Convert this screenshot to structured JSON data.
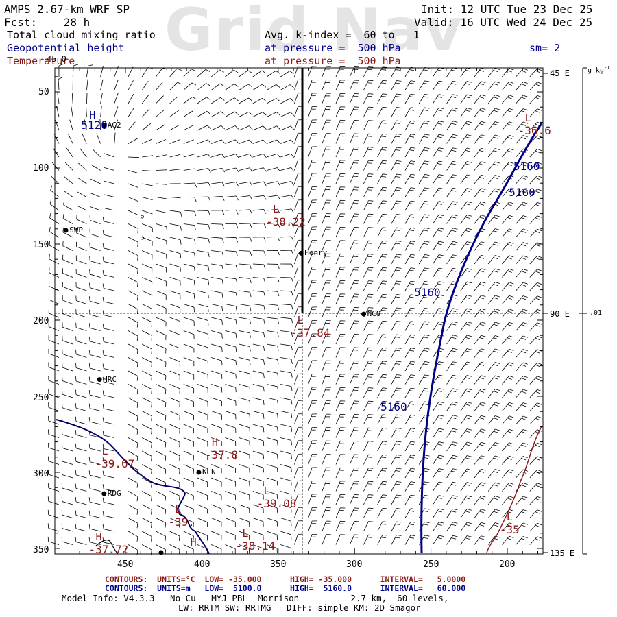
{
  "watermark": "Grid Nav",
  "header": {
    "model": "AMPS 2.67-km WRF SP",
    "fcst": "Fcst:    28 h",
    "init": "Init: 12 UTC Tue 23 Dec 25",
    "valid": "Valid: 16 UTC Wed 24 Dec 25",
    "field1": "Total cloud mixing ratio",
    "field1_avg": "Avg. k-index =  60 to   1",
    "field2": "Geopotential height",
    "field2_level": "at pressure =  500 hPa",
    "field3": "Temperature",
    "field3_level": "at pressure =  500 hPa",
    "smoothing": "sm= 2"
  },
  "axes": {
    "x_ticks": [
      "450",
      "400",
      "350",
      "300",
      "250",
      "200"
    ],
    "y_ticks": [
      "50",
      "100",
      "150",
      "200",
      "250",
      "300",
      "350"
    ],
    "right_labels": [
      "45 E",
      "90 E",
      "135 E"
    ],
    "colorbar_unit": "g kg",
    "colorbar_unit_sup": "-1",
    "colorbar_value": ".01",
    "corner_label": "45 0"
  },
  "stations": [
    {
      "name": "AG2",
      "x": 464,
      "y": 72
    },
    {
      "name": "SWP",
      "x": 489,
      "y": 141
    },
    {
      "name": "Henry",
      "x": 335,
      "y": 156
    },
    {
      "name": "NCO",
      "x": 294,
      "y": 196
    },
    {
      "name": "HRC",
      "x": 467,
      "y": 239
    },
    {
      "name": "KLN",
      "x": 402,
      "y": 300
    },
    {
      "name": "RDG",
      "x": 464,
      "y": 314
    }
  ],
  "small_circles": [
    {
      "x": 439,
      "y": 132
    },
    {
      "x": 439,
      "y": 146
    }
  ],
  "height_labels": [
    {
      "text": "5120",
      "kind": "H",
      "x": 479,
      "y": 72
    },
    {
      "text": "5160",
      "x": 196,
      "y": 99
    },
    {
      "text": "5160",
      "x": 199,
      "y": 116
    },
    {
      "text": "5160",
      "x": 261,
      "y": 182
    },
    {
      "text": "5160",
      "x": 283,
      "y": 257
    }
  ],
  "temp_labels": [
    {
      "kind": "L",
      "value": "-36.6",
      "x": 193,
      "y": 73
    },
    {
      "kind": "L",
      "value": "-38.22",
      "x": 358,
      "y": 133
    },
    {
      "kind": "L",
      "value": "-37.84",
      "x": 342,
      "y": 206
    },
    {
      "kind": "H",
      "value": "-37.8",
      "x": 398,
      "y": 286
    },
    {
      "kind": "L",
      "value": "-39.67",
      "x": 470,
      "y": 292
    },
    {
      "kind": "L",
      "value": "-39.08",
      "x": 364,
      "y": 318
    },
    {
      "kind": "L",
      "value": "-39.",
      "x": 422,
      "y": 330
    },
    {
      "kind": "L",
      "value": "-35",
      "x": 205,
      "y": 335
    },
    {
      "kind": "H",
      "value": "-37.72",
      "x": 474,
      "y": 348
    },
    {
      "kind": "L",
      "value": "-38.14",
      "x": 378,
      "y": 346
    },
    {
      "kind": "H",
      "value": "",
      "x": 412,
      "y": 352
    }
  ],
  "footer": {
    "temp_contours": "CONTOURS:  UNITS=°C  LOW= -35.000      HIGH= -35.000      INTERVAL=   5.0000",
    "height_contours": "CONTOURS:  UNITS=m   LOW=  5100.0      HIGH=  5160.0      INTERVAL=   60.000",
    "model_info": "Model Info: V4.3.3   No Cu   MYJ PBL  Morrison          2.7 km,  60 levels,",
    "model_info2": "LW: RRTM SW: RRTMG   DIFF: simple KM: 2D Smagor"
  },
  "colors": {
    "height_contour": "#00008c",
    "temp_contour": "#8c1a1a",
    "coastline": "#000064",
    "wind_barb": "#000000"
  }
}
